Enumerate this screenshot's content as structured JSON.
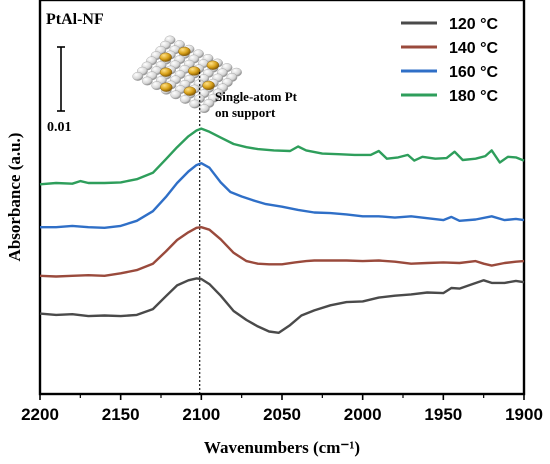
{
  "chart_data": {
    "type": "line",
    "panel_label": "PtAl-NF",
    "xlabel": "Wavenumbers (cm⁻¹)",
    "ylabel": "Absorbance (a.u.)",
    "xlim": [
      2200,
      1900
    ],
    "x_reversed": true,
    "x_ticks": [
      "2200",
      "2150",
      "2100",
      "2050",
      "2000",
      "1950",
      "1900"
    ],
    "y_ticks_shown": false,
    "scale_bar_label": "0.01",
    "reference_line_x": 2101,
    "annotation": {
      "line1": "Single-atom Pt",
      "line2": "on support",
      "inset_icon": "single-atom-pt-lattice-icon"
    },
    "grid": false,
    "legend_position": "top-right",
    "series": [
      {
        "name": "120 °C",
        "color": "#4a4a4a",
        "x": [
          2200,
          2190,
          2180,
          2170,
          2160,
          2150,
          2140,
          2130,
          2122,
          2115,
          2108,
          2103,
          2100,
          2095,
          2088,
          2080,
          2072,
          2065,
          2058,
          2052,
          2045,
          2038,
          2030,
          2020,
          2010,
          2000,
          1990,
          1980,
          1970,
          1960,
          1950,
          1945,
          1940,
          1932,
          1925,
          1920,
          1912,
          1905,
          1900
        ],
        "y": [
          -0.0122,
          -0.0124,
          -0.0123,
          -0.0126,
          -0.0125,
          -0.0126,
          -0.0124,
          -0.0115,
          -0.0095,
          -0.0078,
          -0.007,
          -0.0067,
          -0.0068,
          -0.0076,
          -0.0094,
          -0.0118,
          -0.0132,
          -0.0142,
          -0.015,
          -0.0152,
          -0.014,
          -0.0125,
          -0.0117,
          -0.0109,
          -0.0104,
          -0.0103,
          -0.0097,
          -0.0094,
          -0.0092,
          -0.0089,
          -0.009,
          -0.0082,
          -0.0083,
          -0.0076,
          -0.007,
          -0.0074,
          -0.0074,
          -0.0071,
          -0.0073
        ]
      },
      {
        "name": "140 °C",
        "color": "#9a4a3c",
        "x": [
          2200,
          2190,
          2180,
          2170,
          2160,
          2150,
          2140,
          2130,
          2122,
          2115,
          2108,
          2103,
          2100,
          2095,
          2088,
          2080,
          2072,
          2065,
          2058,
          2050,
          2042,
          2035,
          2030,
          2020,
          2010,
          2000,
          1990,
          1980,
          1970,
          1960,
          1950,
          1940,
          1930,
          1925,
          1920,
          1912,
          1905,
          1900
        ],
        "y": [
          -0.0063,
          -0.0064,
          -0.0063,
          -0.0062,
          -0.0063,
          -0.0059,
          -0.0054,
          -0.0044,
          -0.0025,
          -0.0007,
          0.0005,
          0.0012,
          0.0013,
          0.0009,
          -0.0006,
          -0.0027,
          -0.004,
          -0.0044,
          -0.0045,
          -0.0045,
          -0.0042,
          -0.004,
          -0.0039,
          -0.0039,
          -0.0039,
          -0.004,
          -0.0039,
          -0.0041,
          -0.0044,
          -0.0043,
          -0.0042,
          -0.0043,
          -0.004,
          -0.0044,
          -0.0047,
          -0.0043,
          -0.0041,
          -0.004
        ]
      },
      {
        "name": "160 °C",
        "color": "#2f6fc7",
        "x": [
          2200,
          2190,
          2180,
          2170,
          2160,
          2150,
          2140,
          2130,
          2122,
          2115,
          2108,
          2103,
          2100,
          2095,
          2088,
          2082,
          2075,
          2068,
          2060,
          2050,
          2040,
          2030,
          2020,
          2010,
          2000,
          1990,
          1980,
          1970,
          1960,
          1950,
          1945,
          1940,
          1930,
          1920,
          1912,
          1905,
          1900
        ],
        "y": [
          0.0013,
          0.0013,
          0.0015,
          0.0013,
          0.0012,
          0.0015,
          0.0023,
          0.0038,
          0.006,
          0.0082,
          0.01,
          0.011,
          0.0113,
          0.0106,
          0.0083,
          0.0068,
          0.0061,
          0.0055,
          0.0049,
          0.0045,
          0.004,
          0.0036,
          0.0035,
          0.0033,
          0.003,
          0.003,
          0.0028,
          0.003,
          0.0027,
          0.0024,
          0.0029,
          0.0023,
          0.0025,
          0.003,
          0.0024,
          0.0026,
          0.0024
        ]
      },
      {
        "name": "180 °C",
        "color": "#2e9e5b",
        "x": [
          2200,
          2190,
          2180,
          2175,
          2170,
          2160,
          2150,
          2140,
          2130,
          2122,
          2115,
          2108,
          2103,
          2100,
          2095,
          2088,
          2080,
          2072,
          2065,
          2055,
          2045,
          2040,
          2035,
          2025,
          2015,
          2005,
          1995,
          1990,
          1985,
          1978,
          1972,
          1968,
          1963,
          1955,
          1948,
          1943,
          1938,
          1930,
          1924,
          1920,
          1915,
          1910,
          1905,
          1900
        ],
        "y": [
          0.008,
          0.0082,
          0.0081,
          0.0085,
          0.0082,
          0.0082,
          0.0083,
          0.0088,
          0.0098,
          0.0119,
          0.0138,
          0.0155,
          0.0164,
          0.0167,
          0.0162,
          0.0153,
          0.0143,
          0.0138,
          0.0135,
          0.0133,
          0.0132,
          0.0139,
          0.0133,
          0.0128,
          0.0127,
          0.0126,
          0.0126,
          0.0132,
          0.012,
          0.0122,
          0.0126,
          0.0117,
          0.0123,
          0.012,
          0.0121,
          0.0131,
          0.0118,
          0.012,
          0.0124,
          0.0133,
          0.0114,
          0.0123,
          0.0122,
          0.0117
        ]
      }
    ]
  }
}
